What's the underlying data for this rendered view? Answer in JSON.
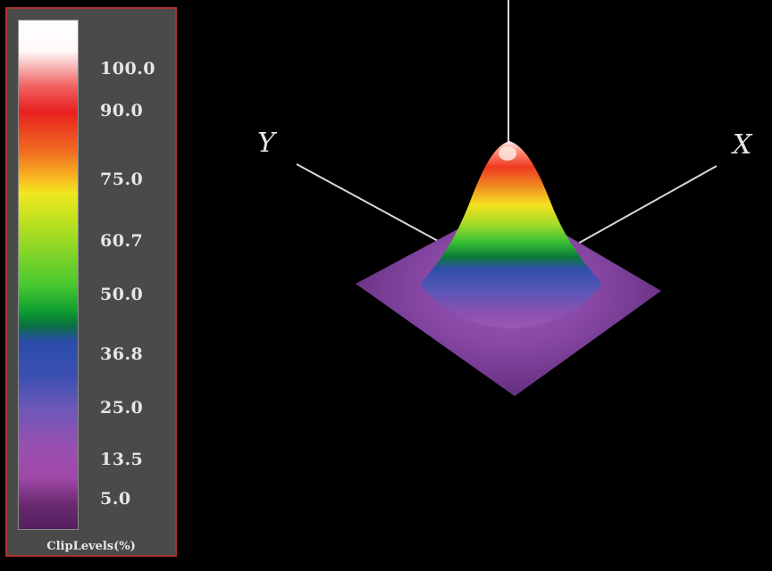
{
  "chart_data": {
    "type": "surface",
    "legend_title": "ClipLevels(%)",
    "clip_levels": [
      "100.0",
      "90.0",
      "75.0",
      "60.7",
      "50.0",
      "36.8",
      "25.0",
      "13.5",
      "5.0"
    ],
    "axes": [
      "X",
      "Y"
    ],
    "legend_placement": "left",
    "colors": {
      "100.0": "#ffffff",
      "90.0": "#e82020",
      "75.0": "#f0e820",
      "60.7": "#48c830",
      "50.0": "#087040",
      "36.8": "#3c50b0",
      "25.0": "#6a58b8",
      "13.5": "#a048a8",
      "5.0": "#552060"
    }
  }
}
